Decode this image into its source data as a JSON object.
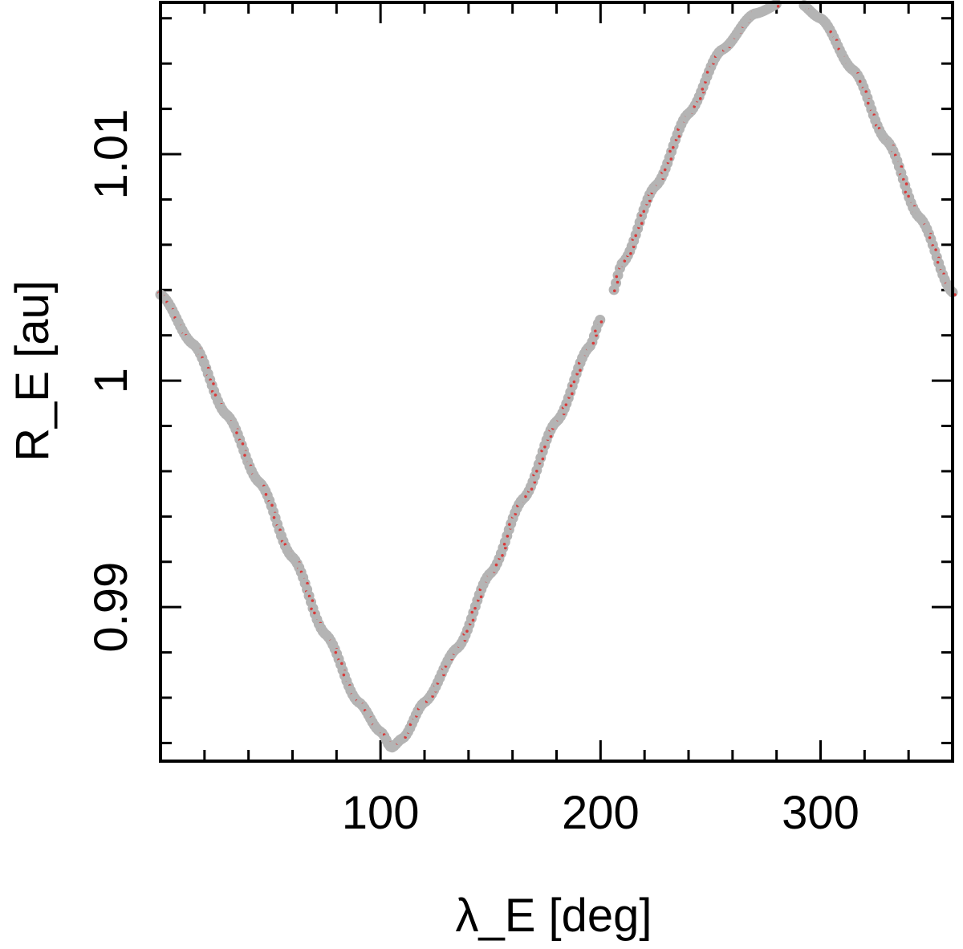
{
  "chart_data": {
    "type": "scatter",
    "title": "",
    "xlabel": "λ_E [deg]",
    "ylabel": "R_E [au]",
    "xlim": [
      0,
      360
    ],
    "ylim": [
      0.9832,
      1.0167
    ],
    "x_ticks": [
      100,
      200,
      300
    ],
    "x_tick_labels": [
      "100",
      "200",
      "300"
    ],
    "x_minor_step": 20,
    "y_ticks": [
      0.99,
      1.0,
      1.01
    ],
    "y_tick_labels": [
      "0.99",
      "1",
      "1.01"
    ],
    "y_minor_step": 0.002,
    "grid": false,
    "legend": "none",
    "colors": {
      "points_red": "#d83a3a",
      "points_gray": "#b4b4b4",
      "frame": "#000000"
    },
    "series": [
      {
        "marker": "points",
        "x": [
          0,
          15,
          30,
          45,
          60,
          75,
          90,
          100,
          105,
          110,
          120,
          135,
          150,
          165,
          180,
          195,
          200,
          205,
          210,
          225,
          240,
          255,
          270,
          285,
          290,
          300,
          315,
          330,
          345,
          360
        ],
        "y": [
          1.0038,
          1.0016,
          0.9985,
          0.9955,
          0.9922,
          0.9888,
          0.9858,
          0.9845,
          0.9838,
          0.9842,
          0.9858,
          0.9882,
          0.9915,
          0.9948,
          0.9982,
          1.0015,
          1.0027,
          1.0038,
          1.0052,
          1.0086,
          1.0118,
          1.0146,
          1.0162,
          1.0168,
          1.0167,
          1.016,
          1.0137,
          1.0106,
          1.0072,
          1.0039
        ],
        "gap": [
          200,
          206
        ]
      }
    ]
  }
}
